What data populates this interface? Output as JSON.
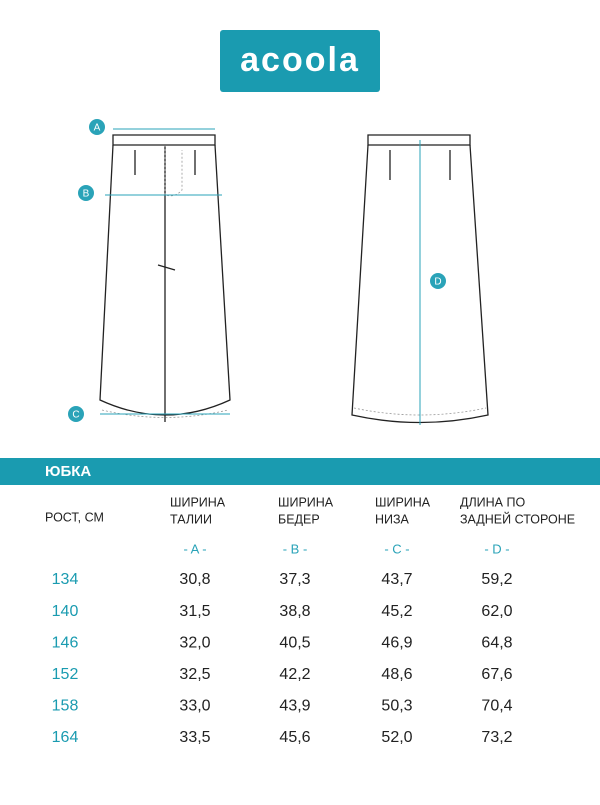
{
  "logo": "acoola",
  "diagram": {
    "labels": [
      "A",
      "B",
      "C",
      "D"
    ]
  },
  "section_title": "ЮБКА",
  "table": {
    "header": [
      [
        "РОСТ, СМ"
      ],
      [
        "ШИРИНА",
        "ТАЛИИ"
      ],
      [
        "ШИРИНА",
        "БЕДЕР"
      ],
      [
        "ШИРИНА",
        "НИЗА"
      ],
      [
        "ДЛИНА ПО",
        "ЗАДНЕЙ СТОРОНЕ"
      ]
    ],
    "markers": [
      "- A -",
      "- B -",
      "- C -",
      "- D -"
    ],
    "rows": [
      [
        "134",
        "30,8",
        "37,3",
        "43,7",
        "59,2"
      ],
      [
        "140",
        "31,5",
        "38,8",
        "45,2",
        "62,0"
      ],
      [
        "146",
        "32,0",
        "40,5",
        "46,9",
        "64,8"
      ],
      [
        "152",
        "32,5",
        "42,2",
        "48,6",
        "67,6"
      ],
      [
        "158",
        "33,0",
        "43,9",
        "50,3",
        "70,4"
      ],
      [
        "164",
        "33,5",
        "45,6",
        "52,0",
        "73,2"
      ]
    ]
  }
}
